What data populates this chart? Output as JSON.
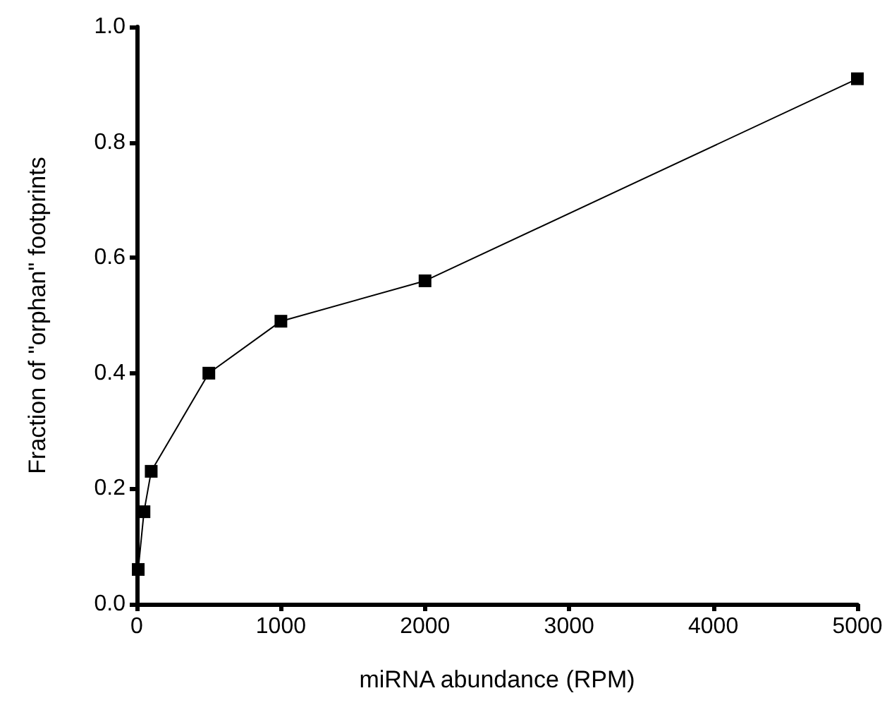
{
  "chart_data": {
    "type": "line",
    "xlabel": "miRNA abundance (RPM)",
    "ylabel": "Fraction of \"orphan\" footprints",
    "x": [
      10,
      50,
      100,
      500,
      1000,
      2000,
      5000
    ],
    "series": [
      {
        "color": "#000000",
        "values": [
          0.06,
          0.16,
          0.23,
          0.4,
          0.49,
          0.56,
          0.91
        ]
      }
    ],
    "xlim": [
      0,
      5000
    ],
    "xticks": [
      0,
      1000,
      2000,
      3000,
      4000,
      5000
    ],
    "ylim": [
      0,
      1
    ],
    "yticks": [
      {
        "value": 0,
        "label": "0.0"
      },
      0.2,
      0.4,
      0.6,
      0.8,
      {
        "value": 1,
        "label": "1.0"
      }
    ],
    "grid": false,
    "marker": "square",
    "line_style": "solid"
  }
}
